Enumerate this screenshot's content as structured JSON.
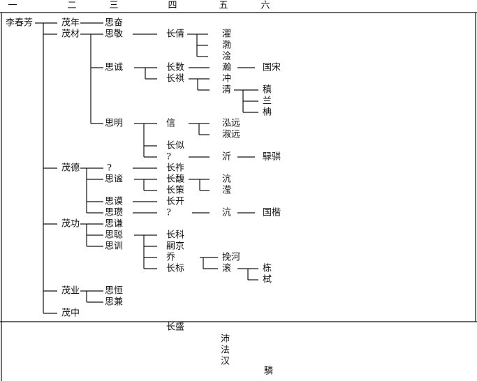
{
  "header": [
    "一",
    "二",
    "三",
    "四",
    "五",
    "六"
  ],
  "nodes": [
    "李春芳",
    "茂年",
    "茂材",
    "茂德",
    "茂功",
    "茂业",
    "茂中",
    "思奋",
    "思敬",
    "思诚",
    "思明",
    "?",
    "思谧",
    "思谟",
    "思瓒",
    "思谦",
    "思聪",
    "思训",
    "思恒",
    "思兼",
    "长倩",
    "长数",
    "长祺",
    "信",
    "长似",
    "?",
    "长祚",
    "长馥",
    "长策",
    "长开",
    "?",
    "长科",
    "嗣京",
    "乔",
    "长标",
    "濯",
    "渤",
    "淦",
    "瀚",
    "冲",
    "清",
    "泓远",
    "淑远",
    "沂",
    "沆",
    "滢",
    "沆",
    "挽河",
    "滚",
    "国宋",
    "稹",
    "兰",
    "柟",
    "騄骐",
    "国楷",
    "栋",
    "栻"
  ],
  "footer": [
    "长盛",
    "沛",
    "法",
    "汉",
    "驎"
  ]
}
